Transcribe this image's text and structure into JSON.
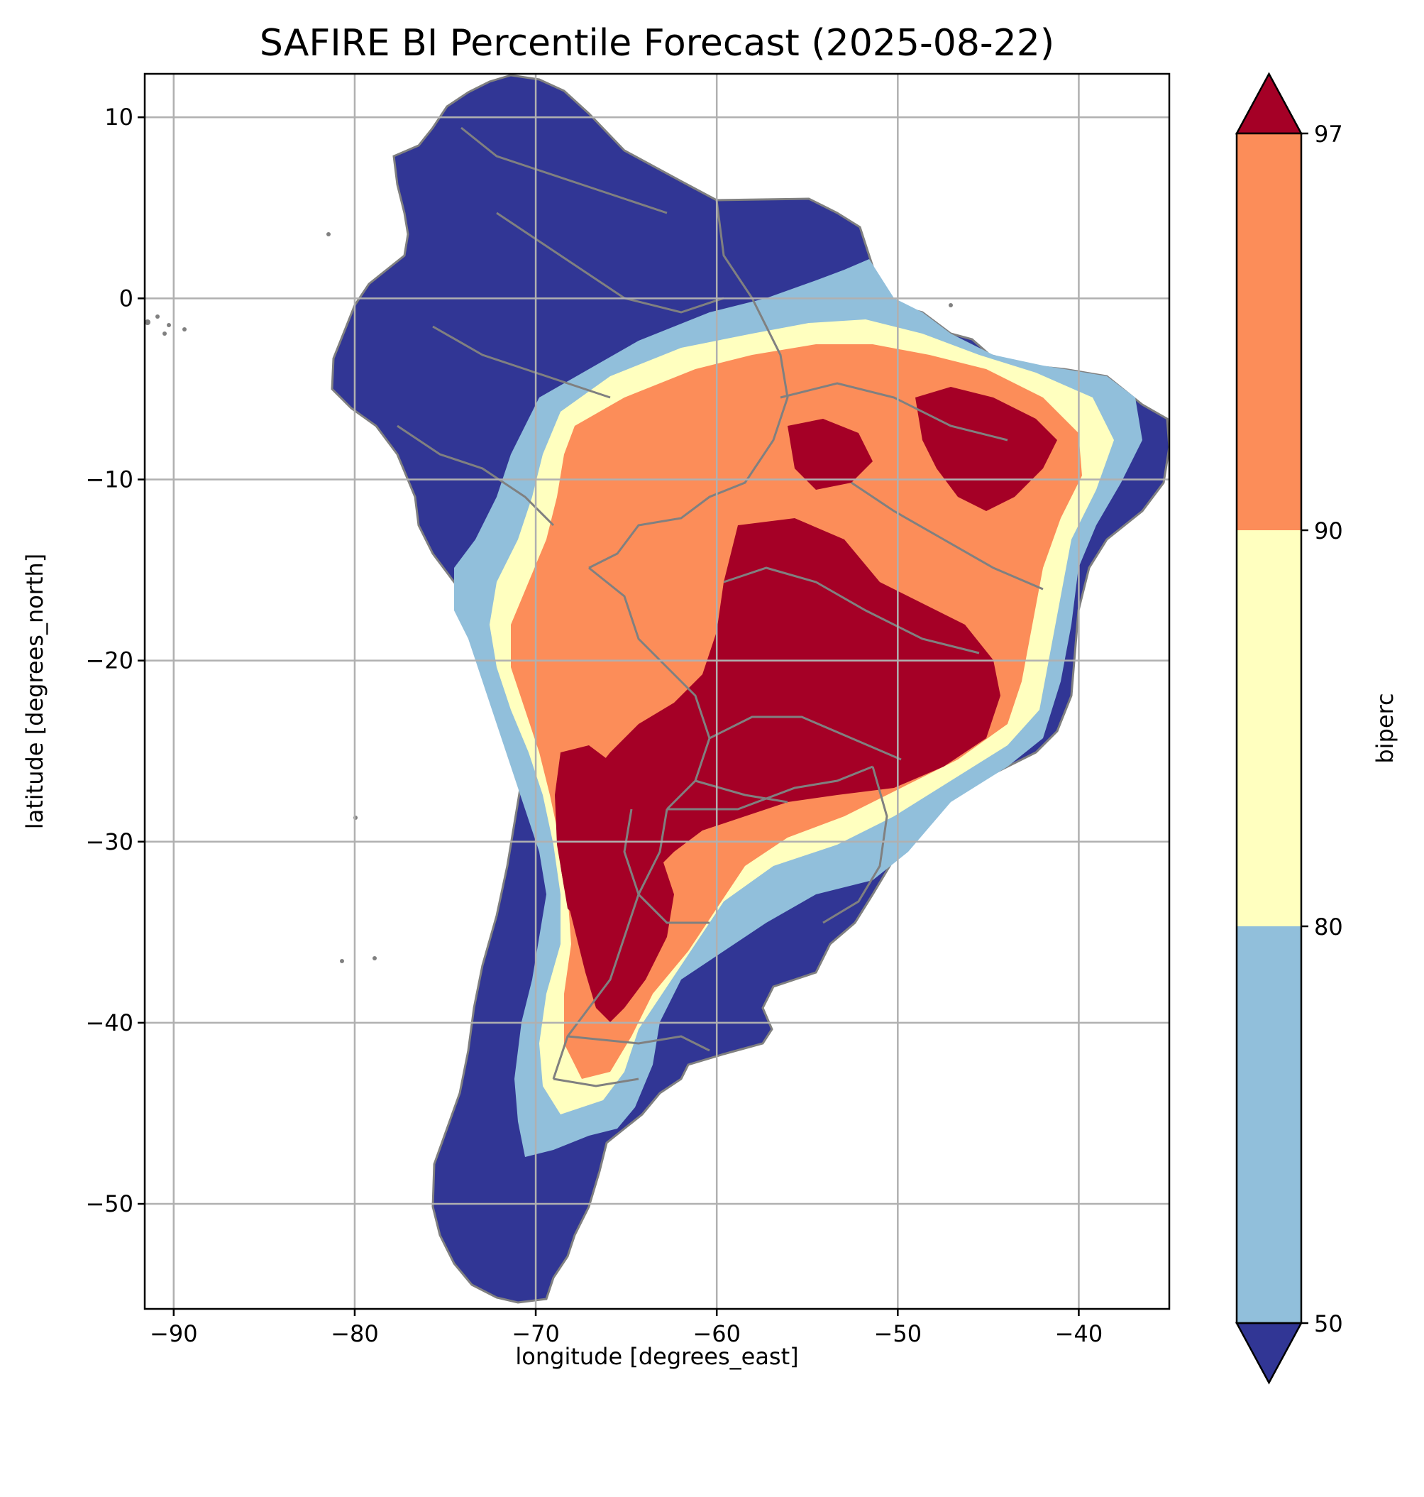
{
  "title": "SAFIRE BI Percentile Forecast (2025-08-22)",
  "map": {
    "x_label": "longitude [degrees_east]",
    "y_label": "latitude [degrees_north]",
    "x_range": [
      -91.6,
      -35.0
    ],
    "y_range": [
      -55.8,
      12.4
    ],
    "x_ticks": [
      -90,
      -80,
      -70,
      -60,
      -50,
      -40
    ],
    "x_tick_labels": [
      "−90",
      "−80",
      "−70",
      "−60",
      "−50",
      "−40"
    ],
    "y_ticks": [
      10,
      0,
      -10,
      -20,
      -30,
      -40,
      -50
    ],
    "y_tick_labels": [
      "10",
      "0",
      "−10",
      "−20",
      "−30",
      "−40",
      "−50"
    ],
    "grid": true,
    "border_color": "#808080"
  },
  "colorbar": {
    "label": "biperc",
    "ticks": [
      "50",
      "80",
      "90",
      "97"
    ],
    "bins": [
      {
        "range": "<50",
        "color": "#313695"
      },
      {
        "range": "50-80",
        "color": "#91bfdb"
      },
      {
        "range": "80-90",
        "color": "#ffffbf"
      },
      {
        "range": "90-97",
        "color": "#fc8d59"
      },
      {
        "range": ">97",
        "color": "#a50026"
      }
    ]
  }
}
